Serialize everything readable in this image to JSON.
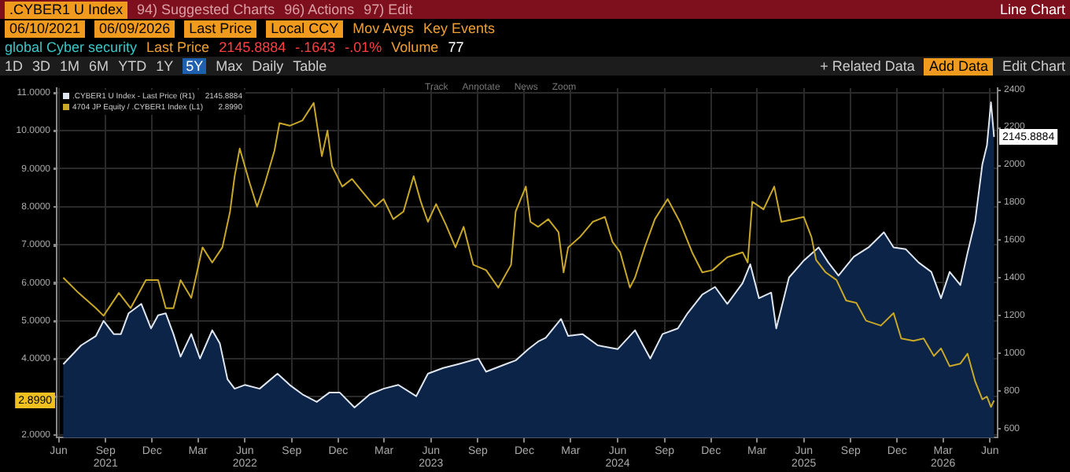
{
  "chart_data": {
    "type": "line",
    "title": ".CYBER1 U Index",
    "subtitle": "global Cyber security",
    "annotations": [
      "94) Suggested Charts",
      "96) Actions",
      "97) Edit",
      "Line Chart",
      "06/10/2021",
      "06/09/2026",
      "Last Price",
      "Local CCY",
      "Mov Avgs",
      "Key Events",
      "Last Price",
      "2145.8884",
      "-.1643",
      "-.01%",
      "Volume",
      "77",
      "1D",
      "3D",
      "1M",
      "6M",
      "YTD",
      "1Y",
      "5Y",
      "Max",
      "Daily",
      "Table",
      "+ Related Data",
      "Add Data",
      "Edit Chart",
      "Track",
      "Annotate",
      "News",
      "Zoom",
      "2145.8884",
      "2.8990",
      "2145.8884",
      "2.8990"
    ],
    "series": [
      {
        "name": ".CYBER1 U Index - Last Price (R1)",
        "type": "area",
        "axis": "y2",
        "color": "#dfe6f0",
        "x": [
          "2021-06-10",
          "2021-07-15",
          "2021-08-13",
          "2021-08-28",
          "2021-09-17",
          "2021-10-01",
          "2021-10-16",
          "2021-11-10",
          "2021-11-29",
          "2021-12-13",
          "2021-12-28",
          "2022-01-12",
          "2022-01-26",
          "2022-02-16",
          "2022-03-05",
          "2022-03-29",
          "2022-04-13",
          "2022-04-28",
          "2022-05-12",
          "2022-06-01",
          "2022-06-30",
          "2022-08-04",
          "2022-08-28",
          "2022-09-22",
          "2022-10-20",
          "2022-11-14",
          "2022-12-04",
          "2023-01-02",
          "2023-02-01",
          "2023-02-28",
          "2023-03-29",
          "2023-05-03",
          "2023-05-26",
          "2023-06-25",
          "2023-07-24",
          "2023-09-02",
          "2023-09-17",
          "2023-10-25",
          "2023-11-14",
          "2023-12-09",
          "2023-12-28",
          "2024-01-12",
          "2024-02-11",
          "2024-02-25",
          "2024-03-24",
          "2024-04-23",
          "2024-06-01",
          "2024-07-05",
          "2024-08-04",
          "2024-08-28",
          "2024-09-27",
          "2024-10-16",
          "2024-11-14",
          "2024-12-09",
          "2025-01-02",
          "2025-02-01",
          "2025-02-16",
          "2025-03-05",
          "2025-03-29",
          "2025-04-08",
          "2025-05-03",
          "2025-06-01",
          "2025-06-30",
          "2025-07-19",
          "2025-08-08",
          "2025-09-07",
          "2025-10-06",
          "2025-11-05",
          "2025-11-24",
          "2025-12-18",
          "2026-01-12",
          "2026-02-06",
          "2026-02-25",
          "2026-03-14",
          "2026-04-04",
          "2026-04-18",
          "2026-05-03",
          "2026-05-17",
          "2026-05-26",
          "2026-06-03",
          "2026-06-09"
        ],
        "values": [
          940,
          1040,
          1090,
          1170,
          1100,
          1100,
          1210,
          1260,
          1130,
          1200,
          1210,
          1100,
          980,
          1100,
          970,
          1120,
          1050,
          860,
          810,
          830,
          810,
          890,
          830,
          780,
          740,
          790,
          790,
          710,
          780,
          810,
          830,
          770,
          890,
          920,
          940,
          970,
          900,
          940,
          960,
          1020,
          1060,
          1080,
          1180,
          1090,
          1100,
          1040,
          1020,
          1120,
          970,
          1100,
          1130,
          1210,
          1310,
          1350,
          1260,
          1370,
          1470,
          1290,
          1320,
          1130,
          1400,
          1490,
          1560,
          1480,
          1410,
          1510,
          1560,
          1640,
          1560,
          1550,
          1480,
          1430,
          1290,
          1430,
          1360,
          1530,
          1700,
          2000,
          2100,
          2330,
          2145.8884
        ]
      },
      {
        "name": "4704 JP Equity / .CYBER1 Index (L1)",
        "type": "line",
        "axis": "y",
        "color": "#c9a827",
        "x": [
          "2021-06-10",
          "2021-07-10",
          "2021-08-13",
          "2021-08-28",
          "2021-09-27",
          "2021-10-20",
          "2021-11-19",
          "2021-12-13",
          "2021-12-28",
          "2022-01-12",
          "2022-01-26",
          "2022-02-16",
          "2022-03-10",
          "2022-03-29",
          "2022-04-18",
          "2022-05-03",
          "2022-05-12",
          "2022-05-22",
          "2022-06-11",
          "2022-06-25",
          "2022-07-10",
          "2022-07-29",
          "2022-08-08",
          "2022-08-28",
          "2022-09-22",
          "2022-10-14",
          "2022-10-30",
          "2022-11-10",
          "2022-11-19",
          "2022-12-09",
          "2022-12-28",
          "2023-01-17",
          "2023-02-11",
          "2023-02-28",
          "2023-03-19",
          "2023-04-08",
          "2023-04-28",
          "2023-05-12",
          "2023-05-26",
          "2023-06-11",
          "2023-06-30",
          "2023-07-19",
          "2023-08-04",
          "2023-08-23",
          "2023-09-17",
          "2023-10-11",
          "2023-11-05",
          "2023-11-14",
          "2023-12-04",
          "2023-12-13",
          "2023-12-28",
          "2024-01-17",
          "2024-02-06",
          "2024-02-16",
          "2024-02-25",
          "2024-03-19",
          "2024-04-13",
          "2024-05-07",
          "2024-05-22",
          "2024-06-06",
          "2024-06-25",
          "2024-07-05",
          "2024-07-24",
          "2024-08-13",
          "2024-09-07",
          "2024-10-01",
          "2024-10-25",
          "2024-11-14",
          "2024-12-04",
          "2025-01-02",
          "2025-02-01",
          "2025-02-11",
          "2025-02-20",
          "2025-03-14",
          "2025-04-04",
          "2025-04-18",
          "2025-05-12",
          "2025-06-01",
          "2025-06-16",
          "2025-06-25",
          "2025-07-14",
          "2025-08-04",
          "2025-08-23",
          "2025-09-12",
          "2025-10-01",
          "2025-10-30",
          "2025-11-24",
          "2025-12-09",
          "2026-01-02",
          "2026-01-22",
          "2026-02-11",
          "2026-02-25",
          "2026-03-14",
          "2026-04-04",
          "2026-04-18",
          "2026-05-03",
          "2026-05-17",
          "2026-05-26",
          "2026-06-03",
          "2026-06-09"
        ],
        "values": [
          6.13,
          5.73,
          5.33,
          5.13,
          5.73,
          5.33,
          6.07,
          6.07,
          5.33,
          5.33,
          6.07,
          5.6,
          6.93,
          6.53,
          6.93,
          7.87,
          8.8,
          9.53,
          8.6,
          8.0,
          8.6,
          9.47,
          10.2,
          10.13,
          10.27,
          10.73,
          9.33,
          10.0,
          9.07,
          8.53,
          8.73,
          8.4,
          8.0,
          8.2,
          7.67,
          7.87,
          8.8,
          8.13,
          7.6,
          8.07,
          7.53,
          6.93,
          7.47,
          6.47,
          6.33,
          5.87,
          6.47,
          7.87,
          8.53,
          7.6,
          7.47,
          7.67,
          7.33,
          6.27,
          6.93,
          7.2,
          7.6,
          7.73,
          7.07,
          6.8,
          5.87,
          6.13,
          6.93,
          7.67,
          8.2,
          7.6,
          6.8,
          6.27,
          6.33,
          6.67,
          6.8,
          6.53,
          8.13,
          7.93,
          8.53,
          7.6,
          7.67,
          7.73,
          7.2,
          6.6,
          6.27,
          6.07,
          5.53,
          5.47,
          5.0,
          4.87,
          5.2,
          4.53,
          4.47,
          4.53,
          4.07,
          4.27,
          3.8,
          3.87,
          4.13,
          3.4,
          2.93,
          3.0,
          2.73,
          2.899
        ]
      }
    ],
    "xlim": [
      "2021-05-28",
      "2026-06-16"
    ],
    "xticks": [
      {
        "value": "2021-06-01",
        "label": "Jun"
      },
      {
        "value": "2021-09-01",
        "label": "Sep\n2021"
      },
      {
        "value": "2021-12-01",
        "label": "Dec"
      },
      {
        "value": "2022-03-01",
        "label": "Mar"
      },
      {
        "value": "2022-06-01",
        "label": "Jun\n2022"
      },
      {
        "value": "2022-09-01",
        "label": "Sep"
      },
      {
        "value": "2022-12-01",
        "label": "Dec"
      },
      {
        "value": "2023-03-01",
        "label": "Mar"
      },
      {
        "value": "2023-06-01",
        "label": "Jun\n2023"
      },
      {
        "value": "2023-09-01",
        "label": "Sep"
      },
      {
        "value": "2023-12-01",
        "label": "Dec"
      },
      {
        "value": "2024-03-01",
        "label": "Mar"
      },
      {
        "value": "2024-06-01",
        "label": "Jun\n2024"
      },
      {
        "value": "2024-09-01",
        "label": "Sep"
      },
      {
        "value": "2024-12-01",
        "label": "Dec"
      },
      {
        "value": "2025-03-01",
        "label": "Mar"
      },
      {
        "value": "2025-06-01",
        "label": "Jun\n2025"
      },
      {
        "value": "2025-09-01",
        "label": "Sep"
      },
      {
        "value": "2025-12-01",
        "label": "Dec"
      },
      {
        "value": "2026-03-01",
        "label": "Mar\n2026"
      },
      {
        "value": "2026-06-01",
        "label": "Jun"
      }
    ],
    "ylim": [
      1.92,
      11.12
    ],
    "yticks": [
      {
        "value": 2,
        "label": "2.0000"
      },
      {
        "value": 3,
        "label": null
      },
      {
        "value": 4,
        "label": "4.0000"
      },
      {
        "value": 5,
        "label": "5.0000"
      },
      {
        "value": 6,
        "label": "6.0000"
      },
      {
        "value": 7,
        "label": "7.0000"
      },
      {
        "value": 8,
        "label": "8.0000"
      },
      {
        "value": 9,
        "label": "9.0000"
      },
      {
        "value": 10,
        "label": "10.0000"
      },
      {
        "value": 11,
        "label": "11.0000"
      }
    ],
    "y2lim": [
      550,
      2405
    ],
    "y2ticks": [
      600,
      800,
      1000,
      1200,
      1400,
      1600,
      1800,
      2000,
      2200,
      2400
    ],
    "grid": true,
    "legend": "top left"
  }
}
